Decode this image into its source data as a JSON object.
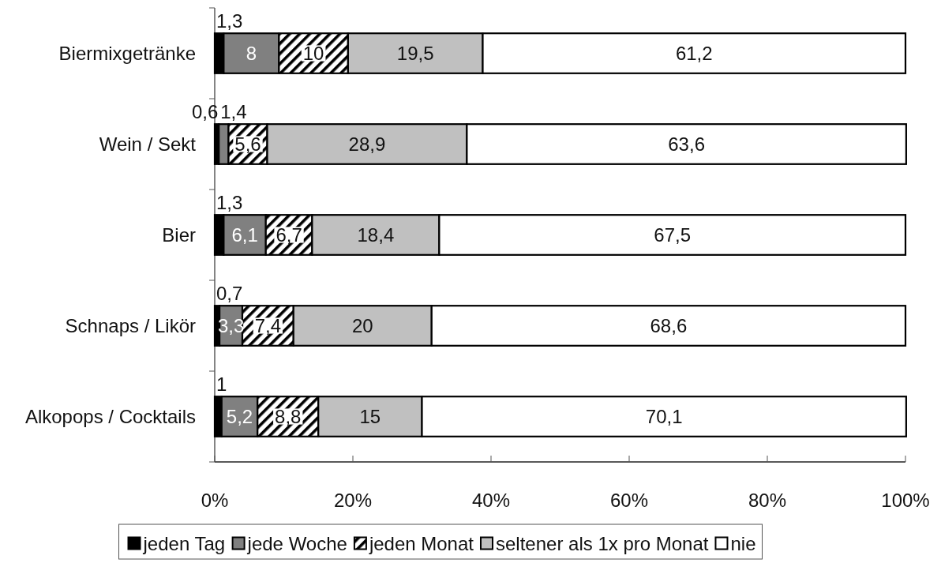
{
  "chart_data": {
    "type": "bar",
    "orientation": "horizontal",
    "stacked": true,
    "categories": [
      "Biermixgetränke",
      "Wein / Sekt",
      "Bier",
      "Schnaps / Likör",
      "Alkopops / Cocktails"
    ],
    "series": [
      {
        "name": "jeden Tag",
        "color": "#000000",
        "values": [
          1.3,
          0.6,
          1.3,
          0.7,
          1
        ],
        "value_labels": [
          "1,3",
          "0,6",
          "1,3",
          "0,7",
          "1"
        ]
      },
      {
        "name": "jede Woche",
        "color": "#808080",
        "values": [
          8,
          1.4,
          6.1,
          3.3,
          5.2
        ],
        "value_labels": [
          "8",
          "1,4",
          "6,1",
          "3,3",
          "5,2"
        ]
      },
      {
        "name": "jeden Monat",
        "color": "#000000",
        "values": [
          10,
          5.6,
          6.7,
          7.4,
          8.8
        ],
        "value_labels": [
          "10",
          "5,6",
          "6,7",
          "7,4",
          "8,8"
        ]
      },
      {
        "name": "seltener als 1x pro Monat",
        "color": "#c0c0c0",
        "values": [
          19.5,
          28.9,
          18.4,
          20,
          15
        ],
        "value_labels": [
          "19,5",
          "28,9",
          "18,4",
          "20",
          "15"
        ]
      },
      {
        "name": "nie",
        "color": "#ffffff",
        "values": [
          61.2,
          63.6,
          67.5,
          68.6,
          70.1
        ],
        "value_labels": [
          "61,2",
          "63,6",
          "67,5",
          "68,6",
          "70,1"
        ]
      }
    ],
    "xlim": [
      0,
      100
    ],
    "xticks": [
      {
        "value": 0,
        "label": "0%"
      },
      {
        "value": 20,
        "label": "20%"
      },
      {
        "value": 40,
        "label": "40%"
      },
      {
        "value": 60,
        "label": "60%"
      },
      {
        "value": 80,
        "label": "80%"
      },
      {
        "value": 100,
        "label": "100%"
      }
    ],
    "legend": "bottom"
  }
}
